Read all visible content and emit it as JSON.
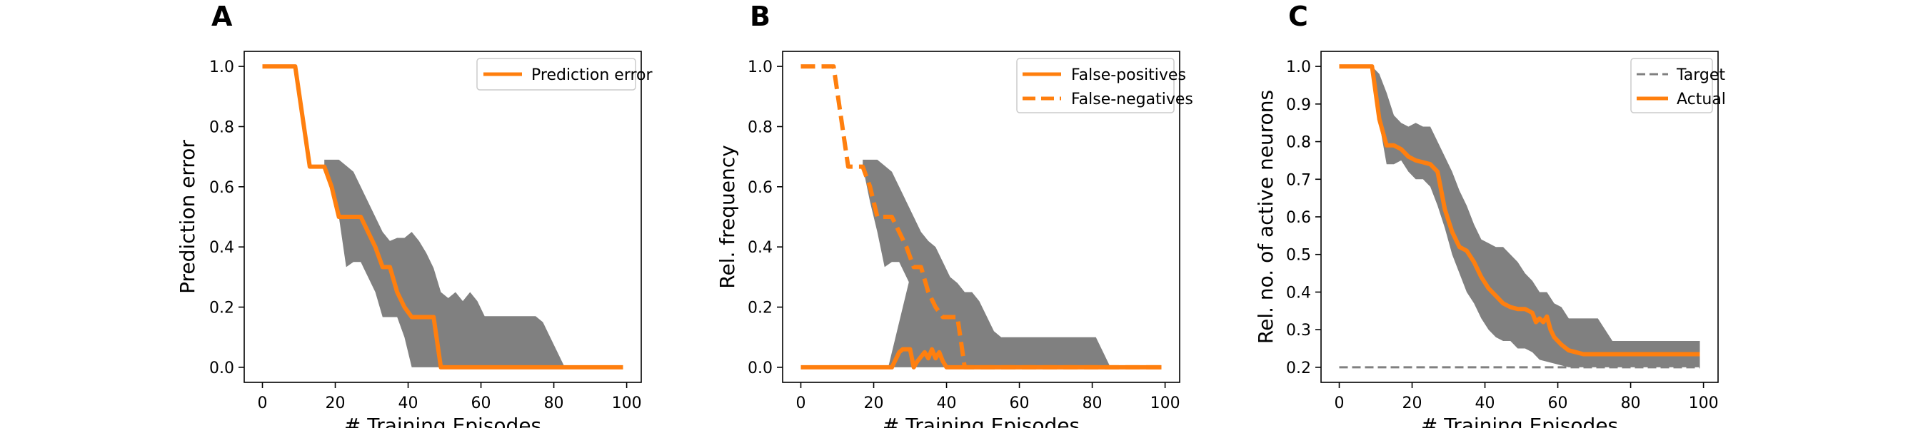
{
  "colors": {
    "orange": "#ff7f0e",
    "band": "#808080",
    "target": "#808080",
    "axis": "#000000",
    "legend_border": "#cccccc"
  },
  "chart_data": [
    {
      "type": "line",
      "panel": "A",
      "xlabel": "# Training Episodes",
      "ylabel": "Prediction error",
      "xlim": [
        -5,
        104
      ],
      "ylim": [
        -0.05,
        1.05
      ],
      "xticks": [
        0,
        20,
        40,
        60,
        80,
        100
      ],
      "yticks": [
        0.0,
        0.2,
        0.4,
        0.6,
        0.8,
        1.0
      ],
      "ytick_labels": [
        "0.0",
        "0.2",
        "0.4",
        "0.6",
        "0.8",
        "1.0"
      ],
      "grid": false,
      "legend_position": "top-right",
      "bands": [
        {
          "x": [
            17,
            19,
            21,
            23,
            25,
            27,
            29,
            31,
            33,
            35,
            37,
            39,
            41,
            43,
            45,
            47,
            49,
            51,
            53,
            55,
            57,
            59,
            61,
            63,
            65,
            67,
            69,
            71,
            73,
            75,
            77,
            79,
            81,
            83,
            85
          ],
          "lower": [
            0.667,
            0.6,
            0.5,
            0.333,
            0.35,
            0.35,
            0.3,
            0.25,
            0.167,
            0.167,
            0.167,
            0.1,
            0.0,
            0.0,
            0.0,
            0.0,
            0.0,
            0.0,
            0.0,
            0.0,
            0.0,
            0.0,
            0.0,
            0.0,
            0.0,
            0.0,
            0.0,
            0.0,
            0.0,
            0.0,
            0.0,
            0.0,
            0.0,
            0.0,
            0.0
          ],
          "upper": [
            0.69,
            0.69,
            0.69,
            0.67,
            0.65,
            0.6,
            0.55,
            0.5,
            0.45,
            0.42,
            0.43,
            0.43,
            0.45,
            0.42,
            0.38,
            0.33,
            0.25,
            0.23,
            0.25,
            0.22,
            0.25,
            0.22,
            0.17,
            0.17,
            0.17,
            0.17,
            0.17,
            0.17,
            0.17,
            0.17,
            0.15,
            0.1,
            0.05,
            0.0,
            0.0
          ]
        }
      ],
      "series": [
        {
          "name": "Prediction error",
          "style": "solid",
          "x": [
            0,
            9,
            13,
            17,
            19,
            21,
            23,
            25,
            27,
            29,
            31,
            33,
            35,
            37,
            39,
            41,
            43,
            45,
            47,
            49,
            55,
            60,
            70,
            80,
            90,
            99
          ],
          "values": [
            1.0,
            1.0,
            0.667,
            0.667,
            0.6,
            0.5,
            0.5,
            0.5,
            0.5,
            0.45,
            0.4,
            0.333,
            0.333,
            0.25,
            0.2,
            0.167,
            0.167,
            0.167,
            0.167,
            0.0,
            0.0,
            0.0,
            0.0,
            0.0,
            0.0,
            0.0
          ]
        }
      ]
    },
    {
      "type": "line",
      "panel": "B",
      "xlabel": "# Training Episodes",
      "ylabel": "Rel. frequency",
      "xlim": [
        -5,
        104
      ],
      "ylim": [
        -0.05,
        1.05
      ],
      "xticks": [
        0,
        20,
        40,
        60,
        80,
        100
      ],
      "yticks": [
        0.0,
        0.2,
        0.4,
        0.6,
        0.8,
        1.0
      ],
      "ytick_labels": [
        "0.0",
        "0.2",
        "0.4",
        "0.6",
        "0.8",
        "1.0"
      ],
      "grid": false,
      "legend_position": "top-right",
      "bands": [
        {
          "x": [
            17,
            19,
            21,
            23,
            25,
            27,
            29,
            31,
            33,
            35,
            37,
            39,
            41,
            43,
            45,
            47,
            49,
            51,
            53,
            55,
            57,
            59,
            61,
            63,
            65,
            67,
            69,
            71,
            73,
            75,
            77,
            79,
            81,
            83,
            85
          ],
          "lower": [
            0.667,
            0.55,
            0.45,
            0.333,
            0.35,
            0.35,
            0.3,
            0.25,
            0.167,
            0.167,
            0.167,
            0.1,
            0.0,
            0.0,
            0.0,
            0.0,
            0.0,
            0.0,
            0.0,
            0.0,
            0.0,
            0.0,
            0.0,
            0.0,
            0.0,
            0.0,
            0.0,
            0.0,
            0.0,
            0.0,
            0.0,
            0.0,
            0.0,
            0.0,
            0.0
          ],
          "upper": [
            0.69,
            0.69,
            0.69,
            0.67,
            0.65,
            0.6,
            0.55,
            0.5,
            0.45,
            0.42,
            0.4,
            0.35,
            0.3,
            0.28,
            0.25,
            0.25,
            0.22,
            0.17,
            0.12,
            0.1,
            0.1,
            0.1,
            0.1,
            0.1,
            0.1,
            0.1,
            0.1,
            0.1,
            0.1,
            0.1,
            0.1,
            0.1,
            0.1,
            0.05,
            0.0
          ]
        },
        {
          "x": [
            24,
            26,
            28,
            30,
            32,
            34,
            36,
            38,
            40,
            42,
            44
          ],
          "lower": [
            0.0,
            0.0,
            0.0,
            0.0,
            0.0,
            0.0,
            0.0,
            0.0,
            0.0,
            0.0,
            0.0
          ],
          "upper": [
            0.0,
            0.1,
            0.2,
            0.3,
            0.3,
            0.35,
            0.3,
            0.25,
            0.2,
            0.1,
            0.0
          ]
        }
      ],
      "series": [
        {
          "name": "False-positives",
          "style": "solid",
          "x": [
            0,
            25,
            27,
            28,
            30,
            31,
            32,
            34,
            35,
            36,
            37,
            38,
            39,
            40,
            42,
            44,
            60,
            80,
            99
          ],
          "values": [
            0.0,
            0.0,
            0.05,
            0.06,
            0.06,
            0.0,
            0.02,
            0.05,
            0.03,
            0.06,
            0.03,
            0.05,
            0.02,
            0.0,
            0.0,
            0.0,
            0.0,
            0.0,
            0.0
          ]
        },
        {
          "name": "False-negatives",
          "style": "dashed",
          "x": [
            0,
            9,
            13,
            17,
            19,
            21,
            23,
            25,
            27,
            29,
            31,
            33,
            35,
            37,
            39,
            41,
            43,
            45,
            47,
            49,
            60,
            80,
            99
          ],
          "values": [
            1.0,
            1.0,
            0.667,
            0.667,
            0.6,
            0.5,
            0.5,
            0.5,
            0.45,
            0.4,
            0.333,
            0.333,
            0.25,
            0.2,
            0.167,
            0.167,
            0.167,
            0.0,
            0.0,
            0.0,
            0.0,
            0.0,
            0.0
          ]
        }
      ]
    },
    {
      "type": "line",
      "panel": "C",
      "xlabel": "# Training Episodes",
      "ylabel": "Rel. no. of active neurons",
      "xlim": [
        -5,
        104
      ],
      "ylim": [
        0.16,
        1.04
      ],
      "xticks": [
        0,
        20,
        40,
        60,
        80,
        100
      ],
      "yticks": [
        0.2,
        0.3,
        0.4,
        0.5,
        0.6,
        0.7,
        0.8,
        0.9,
        1.0
      ],
      "ytick_labels": [
        "0.2",
        "0.3",
        "0.4",
        "0.5",
        "0.6",
        "0.7",
        "0.8",
        "0.9",
        "1.0"
      ],
      "grid": false,
      "legend_position": "top-right",
      "bands": [
        {
          "x": [
            9,
            11,
            13,
            15,
            17,
            19,
            21,
            23,
            25,
            27,
            29,
            31,
            33,
            35,
            37,
            39,
            41,
            43,
            45,
            47,
            49,
            51,
            53,
            55,
            57,
            59,
            61,
            63,
            65,
            67,
            69,
            71,
            73,
            75,
            77,
            79,
            81,
            83,
            85,
            87,
            89,
            91,
            93,
            95,
            97,
            99
          ],
          "lower": [
            1.0,
            0.85,
            0.74,
            0.74,
            0.75,
            0.72,
            0.7,
            0.7,
            0.68,
            0.63,
            0.57,
            0.5,
            0.45,
            0.4,
            0.37,
            0.33,
            0.3,
            0.28,
            0.27,
            0.27,
            0.25,
            0.25,
            0.24,
            0.22,
            0.215,
            0.21,
            0.205,
            0.2,
            0.2,
            0.2,
            0.2,
            0.2,
            0.2,
            0.2,
            0.2,
            0.2,
            0.2,
            0.2,
            0.2,
            0.2,
            0.2,
            0.2,
            0.2,
            0.2,
            0.2,
            0.2
          ],
          "upper": [
            1.0,
            0.98,
            0.93,
            0.87,
            0.85,
            0.84,
            0.85,
            0.84,
            0.84,
            0.8,
            0.76,
            0.72,
            0.67,
            0.63,
            0.58,
            0.54,
            0.53,
            0.52,
            0.52,
            0.5,
            0.48,
            0.45,
            0.43,
            0.4,
            0.4,
            0.37,
            0.36,
            0.33,
            0.33,
            0.33,
            0.33,
            0.33,
            0.3,
            0.27,
            0.27,
            0.27,
            0.27,
            0.27,
            0.27,
            0.27,
            0.27,
            0.27,
            0.27,
            0.27,
            0.27,
            0.27
          ]
        }
      ],
      "series": [
        {
          "name": "Target",
          "style": "dashed-thin",
          "x": [
            0,
            99
          ],
          "values": [
            0.2,
            0.2
          ]
        },
        {
          "name": "Actual",
          "style": "solid",
          "x": [
            0,
            9,
            11,
            13,
            15,
            17,
            19,
            21,
            23,
            25,
            27,
            29,
            31,
            33,
            35,
            37,
            39,
            41,
            43,
            45,
            47,
            49,
            51,
            53,
            54,
            55,
            56,
            57,
            58,
            59,
            61,
            63,
            65,
            67,
            69,
            70,
            75,
            80,
            85,
            90,
            95,
            99
          ],
          "values": [
            1.0,
            1.0,
            0.86,
            0.79,
            0.79,
            0.78,
            0.76,
            0.75,
            0.745,
            0.74,
            0.72,
            0.62,
            0.56,
            0.52,
            0.51,
            0.48,
            0.44,
            0.41,
            0.39,
            0.37,
            0.36,
            0.355,
            0.355,
            0.345,
            0.32,
            0.33,
            0.32,
            0.335,
            0.3,
            0.28,
            0.26,
            0.245,
            0.24,
            0.235,
            0.235,
            0.235,
            0.235,
            0.235,
            0.235,
            0.235,
            0.235,
            0.235
          ]
        }
      ]
    }
  ]
}
